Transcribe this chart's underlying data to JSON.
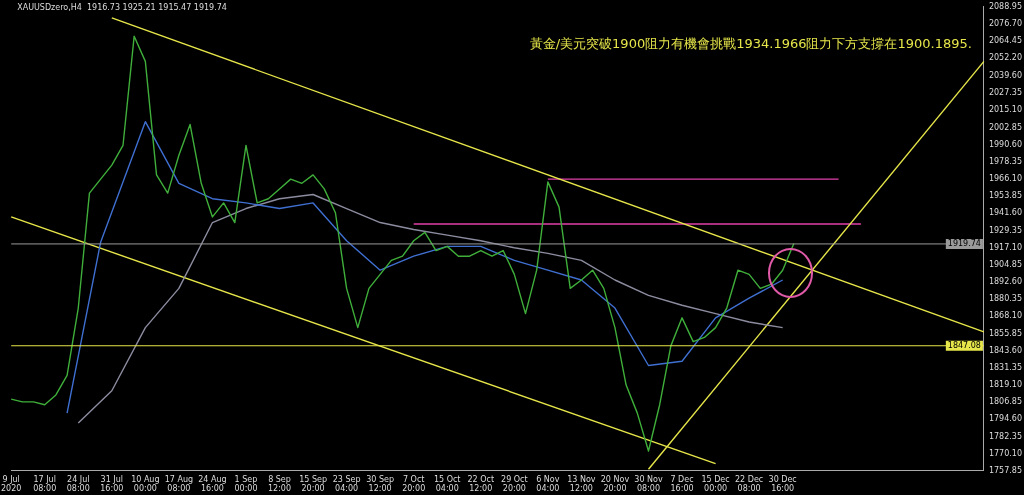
{
  "chart_data": {
    "type": "line",
    "title": "XAUUSDzero,H4  1916.73 1925.21 1915.47 1919.74",
    "annotations": [
      "黃金/美元突破1900阻力有機會挑戰1934.1966阻力下方支撐在1900.1895."
    ],
    "categories": [
      "9 Jul 2020",
      null,
      null,
      "17 Jul 08:00",
      null,
      null,
      "24 Jul 08:00",
      null,
      null,
      "31 Jul 16:00",
      null,
      null,
      "10 Aug 00:00",
      null,
      null,
      "17 Aug 08:00",
      null,
      null,
      "24 Aug 16:00",
      null,
      null,
      "1 Sep 00:00",
      null,
      null,
      "8 Sep 12:00",
      null,
      null,
      "15 Sep 20:00",
      null,
      null,
      "23 Sep 04:00",
      null,
      null,
      "30 Sep 12:00",
      null,
      null,
      "7 Oct 20:00",
      null,
      null,
      "15 Oct 04:00",
      null,
      null,
      "22 Oct 12:00",
      null,
      null,
      "29 Oct 20:00",
      null,
      null,
      "6 Nov 04:00",
      null,
      null,
      "13 Nov 12:00",
      null,
      null,
      "20 Nov 20:00",
      null,
      null,
      "30 Nov 08:00",
      null,
      null,
      "7 Dec 16:00",
      null,
      null,
      "15 Dec 00:00",
      null,
      null,
      "22 Dec 08:00",
      null,
      null,
      "30 Dec 16:00",
      null,
      null,
      null,
      null,
      null,
      null,
      null,
      null,
      null,
      null,
      null,
      null,
      null,
      null,
      null,
      null,
      null,
      null
    ],
    "series": [
      {
        "color": "#3fae3a",
        "values": [
          1809,
          1807,
          1807,
          1805,
          1812,
          1826,
          1874,
          1956,
          1966,
          1976,
          1990,
          2068,
          2050,
          1969,
          1956,
          1983,
          2005,
          1963,
          1939,
          1949,
          1935,
          1990,
          1949,
          1952,
          1959,
          1966,
          1963,
          1969,
          1959,
          1942,
          1888,
          1860,
          1888,
          1898,
          1908,
          1911,
          1922,
          1928,
          1915,
          1918,
          1911,
          1911,
          1915,
          1911,
          1915,
          1898,
          1870,
          1901,
          1964,
          1946,
          1888,
          1894,
          1901,
          1888,
          1860,
          1819,
          1799,
          1772,
          1805,
          1847,
          1867,
          1850,
          1853,
          1860,
          1874,
          1901,
          1898,
          1888,
          1891,
          1901,
          1920,
          null,
          null,
          null,
          null,
          null,
          null,
          null,
          null,
          null,
          null,
          null,
          null,
          null,
          null,
          null,
          null,
          null
        ]
      },
      {
        "color": "#3f6fd0",
        "values": [
          null,
          null,
          null,
          null,
          null,
          1799,
          null,
          null,
          1921,
          null,
          null,
          null,
          2007,
          null,
          null,
          1963,
          null,
          null,
          1952,
          null,
          null,
          1949,
          null,
          null,
          1945,
          null,
          null,
          1949,
          null,
          null,
          1922,
          null,
          null,
          1901,
          null,
          null,
          1911,
          null,
          null,
          1918,
          null,
          null,
          1918,
          null,
          null,
          1908,
          null,
          null,
          1901,
          null,
          null,
          1894,
          null,
          null,
          1874,
          null,
          null,
          1833,
          null,
          null,
          1836,
          null,
          null,
          1867,
          null,
          null,
          1881,
          null,
          null,
          1894,
          null,
          null,
          null,
          null,
          null,
          null,
          null,
          null,
          null,
          null,
          null,
          null,
          null,
          null,
          null,
          null,
          null,
          null
        ]
      },
      {
        "color": "#8c8ca0",
        "values": [
          null,
          null,
          null,
          null,
          null,
          null,
          1792,
          null,
          null,
          1815,
          null,
          null,
          1860,
          null,
          null,
          1888,
          null,
          null,
          1935,
          null,
          null,
          1945,
          null,
          null,
          1952,
          null,
          null,
          1955,
          null,
          null,
          1945,
          null,
          null,
          1935,
          null,
          null,
          1930,
          null,
          null,
          1926,
          null,
          null,
          1922,
          null,
          null,
          1917,
          null,
          null,
          1913,
          null,
          null,
          1908,
          null,
          null,
          1894,
          null,
          null,
          1883,
          null,
          null,
          1876,
          null,
          null,
          1870,
          null,
          null,
          1864,
          null,
          null,
          1860,
          null,
          null,
          null,
          null,
          null,
          null,
          null,
          null,
          null,
          null,
          null,
          null,
          null,
          null,
          null,
          null,
          null,
          null
        ]
      },
      {
        "color": "#e6e64a",
        "values": [
          null,
          null,
          null,
          null,
          null,
          null,
          null,
          null,
          null,
          2081,
          null,
          null,
          null,
          null,
          null,
          null,
          null,
          null,
          null,
          null,
          null,
          null,
          null,
          null,
          null,
          null,
          null,
          null,
          null,
          null,
          null,
          null,
          null,
          null,
          null,
          null,
          null,
          null,
          null,
          null,
          null,
          null,
          null,
          null,
          null,
          null,
          null,
          null,
          null,
          null,
          null,
          null,
          null,
          null,
          null,
          null,
          null,
          null,
          null,
          null,
          null,
          null,
          null,
          null,
          null,
          null,
          null,
          null,
          null,
          null,
          null,
          null,
          null,
          null,
          null,
          null,
          null,
          null,
          null,
          null,
          null,
          null,
          null,
          null,
          null,
          null,
          null,
          1857
        ]
      },
      {
        "color": "#e6e64a",
        "values": [
          1939,
          null,
          null,
          null,
          null,
          null,
          null,
          null,
          null,
          null,
          null,
          null,
          null,
          null,
          null,
          null,
          null,
          null,
          null,
          null,
          null,
          null,
          null,
          null,
          null,
          null,
          null,
          null,
          null,
          null,
          null,
          null,
          null,
          null,
          null,
          null,
          null,
          null,
          null,
          null,
          null,
          null,
          null,
          null,
          null,
          null,
          null,
          null,
          null,
          null,
          null,
          null,
          null,
          null,
          null,
          null,
          null,
          null,
          null,
          null,
          null,
          null,
          null,
          1763,
          null,
          null,
          null,
          null,
          null,
          null,
          null,
          null,
          null,
          null,
          null,
          null,
          null,
          null,
          null,
          null,
          null,
          null,
          null,
          null,
          null,
          null,
          null,
          null
        ]
      },
      {
        "color": "#e6e64a",
        "values": [
          null,
          null,
          null,
          null,
          null,
          null,
          null,
          null,
          null,
          null,
          null,
          null,
          null,
          null,
          null,
          null,
          null,
          null,
          null,
          null,
          null,
          null,
          null,
          null,
          null,
          null,
          null,
          null,
          null,
          null,
          null,
          null,
          null,
          null,
          null,
          null,
          null,
          null,
          null,
          null,
          null,
          null,
          null,
          null,
          null,
          null,
          null,
          null,
          null,
          null,
          null,
          null,
          null,
          null,
          null,
          null,
          null,
          1759,
          null,
          null,
          null,
          null,
          null,
          null,
          null,
          null,
          null,
          null,
          null,
          null,
          null,
          null,
          null,
          null,
          null,
          null,
          null,
          null,
          null,
          null,
          null,
          null,
          null,
          null,
          null,
          null,
          null,
          2050
        ]
      },
      {
        "color": "#e040a8",
        "values": [
          null,
          null,
          null,
          null,
          null,
          null,
          null,
          null,
          null,
          null,
          null,
          null,
          null,
          null,
          null,
          null,
          null,
          null,
          null,
          null,
          null,
          null,
          null,
          null,
          null,
          null,
          null,
          null,
          null,
          null,
          null,
          null,
          null,
          null,
          null,
          null,
          null,
          null,
          null,
          null,
          null,
          null,
          null,
          null,
          null,
          null,
          null,
          null,
          1966,
          null,
          null,
          null,
          null,
          null,
          null,
          null,
          null,
          null,
          null,
          null,
          null,
          null,
          null,
          null,
          null,
          null,
          null,
          null,
          null,
          null,
          null,
          null,
          null,
          null,
          1966,
          null,
          null,
          null,
          null,
          null,
          null,
          null,
          null,
          null,
          null,
          null,
          null,
          null
        ]
      },
      {
        "color": "#e040a8",
        "values": [
          null,
          null,
          null,
          null,
          null,
          null,
          null,
          null,
          null,
          null,
          null,
          null,
          null,
          null,
          null,
          null,
          null,
          null,
          null,
          null,
          null,
          null,
          null,
          null,
          null,
          null,
          null,
          null,
          null,
          null,
          null,
          null,
          null,
          null,
          null,
          null,
          1934,
          null,
          null,
          null,
          null,
          null,
          null,
          null,
          null,
          null,
          null,
          null,
          null,
          null,
          null,
          null,
          null,
          null,
          null,
          null,
          null,
          null,
          null,
          null,
          null,
          null,
          null,
          null,
          null,
          null,
          null,
          null,
          null,
          null,
          null,
          null,
          null,
          null,
          null,
          null,
          1934,
          null,
          null,
          null,
          null,
          null,
          null,
          null,
          null,
          null,
          null,
          null
        ]
      }
    ],
    "ylim": [
      1757.85,
      2088.95
    ],
    "yticks": [
      2088.95,
      {
        "value": 2076.7,
        "label": "2076.70"
      },
      2064.45,
      {
        "value": 2052.2,
        "label": "2052.20"
      },
      {
        "value": 2039.6,
        "label": "2039.60"
      },
      2027.35,
      {
        "value": 2015.1,
        "label": "2015.10"
      },
      2002.85,
      {
        "value": 1990.6,
        "label": "1990.60"
      },
      1978.35,
      {
        "value": 1966.1,
        "label": "1966.10"
      },
      1953.85,
      {
        "value": 1941.6,
        "label": "1941.60"
      },
      1929.35,
      {
        "value": 1917.1,
        "label": "1917.10"
      },
      1904.85,
      {
        "value": 1892.6,
        "label": "1892.60"
      },
      1880.35,
      {
        "value": 1868.1,
        "label": "1868.10"
      },
      1855.85,
      {
        "value": 1843.6,
        "label": "1843.60"
      },
      1831.35,
      {
        "value": 1819.1,
        "label": "1819.10"
      },
      1806.85,
      {
        "value": 1794.6,
        "label": "1794.60"
      },
      1782.35,
      {
        "value": 1770.1,
        "label": "1770.10"
      },
      1757.85
    ],
    "ref_lines": [
      {
        "axis": "y",
        "value": 1847.08,
        "label": "1847.08",
        "color": "#e6e64a"
      },
      {
        "axis": "y",
        "value": 1919.74,
        "label": "1919.74",
        "color": "#9a9a9a"
      }
    ],
    "grid": false,
    "legend": false,
    "marker": "none",
    "line_style": "solid"
  }
}
